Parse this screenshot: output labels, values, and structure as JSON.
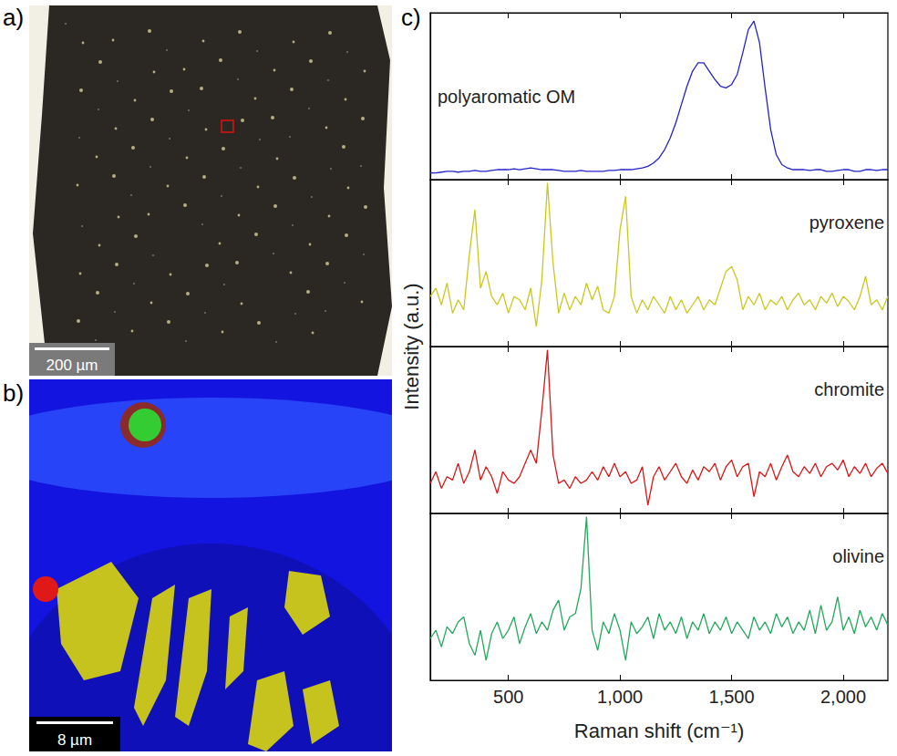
{
  "figure": {
    "panels": [
      {
        "letter": "a)",
        "scale_bar": "200 µm"
      },
      {
        "letter": "b)",
        "scale_bar": "8 µm"
      },
      {
        "letter": "c)"
      }
    ],
    "y_label": "Intensity (a.u.)"
  },
  "chart_data": [
    {
      "type": "line",
      "label": "polyaromatic OM",
      "color": "#2323cc",
      "grid": false,
      "tick_labels": false,
      "xlim": [
        150,
        2200
      ],
      "xticks": [
        500,
        1000,
        1500,
        2000
      ],
      "ylim": [
        0,
        1
      ],
      "x": [
        150,
        175,
        200,
        225,
        250,
        275,
        300,
        325,
        350,
        375,
        400,
        425,
        450,
        475,
        500,
        525,
        550,
        575,
        600,
        625,
        650,
        675,
        700,
        725,
        750,
        775,
        800,
        825,
        850,
        875,
        900,
        925,
        950,
        975,
        1000,
        1025,
        1050,
        1075,
        1100,
        1125,
        1150,
        1175,
        1200,
        1225,
        1250,
        1275,
        1300,
        1325,
        1350,
        1375,
        1400,
        1425,
        1450,
        1475,
        1500,
        1525,
        1550,
        1575,
        1600,
        1625,
        1650,
        1675,
        1700,
        1725,
        1750,
        1775,
        1800,
        1825,
        1850,
        1875,
        1900,
        1925,
        1950,
        1975,
        2000,
        2025,
        2050,
        2075,
        2100,
        2125,
        2150,
        2175,
        2200
      ],
      "values": [
        0.04,
        0.04,
        0.045,
        0.05,
        0.05,
        0.045,
        0.05,
        0.05,
        0.055,
        0.05,
        0.05,
        0.055,
        0.06,
        0.06,
        0.06,
        0.065,
        0.06,
        0.065,
        0.07,
        0.065,
        0.06,
        0.06,
        0.06,
        0.055,
        0.05,
        0.05,
        0.05,
        0.055,
        0.05,
        0.05,
        0.05,
        0.05,
        0.055,
        0.055,
        0.06,
        0.06,
        0.06,
        0.065,
        0.07,
        0.08,
        0.1,
        0.13,
        0.18,
        0.25,
        0.34,
        0.45,
        0.56,
        0.65,
        0.7,
        0.7,
        0.65,
        0.6,
        0.56,
        0.55,
        0.57,
        0.63,
        0.76,
        0.9,
        0.95,
        0.82,
        0.55,
        0.3,
        0.15,
        0.09,
        0.07,
        0.06,
        0.06,
        0.06,
        0.055,
        0.06,
        0.06,
        0.05,
        0.05,
        0.055,
        0.06,
        0.06,
        0.05,
        0.05,
        0.06,
        0.06,
        0.055,
        0.06,
        0.06
      ]
    },
    {
      "type": "line",
      "label": "pyroxene",
      "color": "#c9c81e",
      "grid": false,
      "tick_labels": false,
      "xlim": [
        150,
        2200
      ],
      "xticks": [
        500,
        1000,
        1500,
        2000
      ],
      "ylim": [
        0,
        1
      ],
      "x": [
        150,
        175,
        200,
        225,
        250,
        275,
        300,
        325,
        350,
        375,
        400,
        425,
        450,
        475,
        500,
        525,
        550,
        575,
        600,
        625,
        650,
        675,
        700,
        725,
        750,
        775,
        800,
        825,
        850,
        875,
        900,
        925,
        950,
        975,
        1000,
        1025,
        1050,
        1075,
        1100,
        1125,
        1150,
        1175,
        1200,
        1225,
        1250,
        1275,
        1300,
        1325,
        1350,
        1375,
        1400,
        1425,
        1450,
        1475,
        1500,
        1525,
        1550,
        1575,
        1600,
        1625,
        1650,
        1675,
        1700,
        1725,
        1750,
        1775,
        1800,
        1825,
        1850,
        1875,
        1900,
        1925,
        1950,
        1975,
        2000,
        2025,
        2050,
        2075,
        2100,
        2125,
        2150,
        2175,
        2200
      ],
      "values": [
        0.3,
        0.35,
        0.25,
        0.38,
        0.2,
        0.28,
        0.22,
        0.55,
        0.82,
        0.35,
        0.45,
        0.3,
        0.25,
        0.32,
        0.2,
        0.3,
        0.28,
        0.22,
        0.35,
        0.12,
        0.4,
        0.98,
        0.5,
        0.2,
        0.32,
        0.22,
        0.3,
        0.25,
        0.38,
        0.28,
        0.36,
        0.22,
        0.2,
        0.3,
        0.7,
        0.9,
        0.3,
        0.2,
        0.28,
        0.22,
        0.3,
        0.25,
        0.2,
        0.3,
        0.22,
        0.28,
        0.2,
        0.25,
        0.3,
        0.22,
        0.28,
        0.25,
        0.35,
        0.45,
        0.48,
        0.4,
        0.22,
        0.3,
        0.25,
        0.32,
        0.22,
        0.28,
        0.25,
        0.3,
        0.22,
        0.28,
        0.32,
        0.25,
        0.28,
        0.22,
        0.3,
        0.26,
        0.32,
        0.24,
        0.3,
        0.27,
        0.22,
        0.3,
        0.42,
        0.25,
        0.28,
        0.22,
        0.3
      ]
    },
    {
      "type": "line",
      "label": "chromite",
      "color": "#dd1414",
      "grid": false,
      "tick_labels": false,
      "xlim": [
        150,
        2200
      ],
      "xticks": [
        500,
        1000,
        1500,
        2000
      ],
      "ylim": [
        0,
        1
      ],
      "x": [
        150,
        175,
        200,
        225,
        250,
        275,
        300,
        325,
        350,
        375,
        400,
        425,
        450,
        475,
        500,
        525,
        550,
        575,
        600,
        625,
        650,
        675,
        700,
        725,
        750,
        775,
        800,
        825,
        850,
        875,
        900,
        925,
        950,
        975,
        1000,
        1025,
        1050,
        1075,
        1100,
        1125,
        1150,
        1175,
        1200,
        1225,
        1250,
        1275,
        1300,
        1325,
        1350,
        1375,
        1400,
        1425,
        1450,
        1475,
        1500,
        1525,
        1550,
        1575,
        1600,
        1625,
        1650,
        1675,
        1700,
        1725,
        1750,
        1775,
        1800,
        1825,
        1850,
        1875,
        1900,
        1925,
        1950,
        1975,
        2000,
        2025,
        2050,
        2075,
        2100,
        2125,
        2150,
        2175,
        2200
      ],
      "values": [
        0.18,
        0.25,
        0.15,
        0.22,
        0.2,
        0.3,
        0.18,
        0.25,
        0.38,
        0.2,
        0.28,
        0.22,
        0.12,
        0.25,
        0.2,
        0.18,
        0.22,
        0.3,
        0.38,
        0.3,
        0.62,
        0.98,
        0.35,
        0.18,
        0.2,
        0.15,
        0.22,
        0.18,
        0.2,
        0.25,
        0.2,
        0.28,
        0.22,
        0.3,
        0.22,
        0.25,
        0.18,
        0.2,
        0.28,
        0.05,
        0.22,
        0.28,
        0.2,
        0.25,
        0.3,
        0.22,
        0.18,
        0.26,
        0.2,
        0.28,
        0.25,
        0.3,
        0.2,
        0.28,
        0.32,
        0.22,
        0.28,
        0.3,
        0.1,
        0.25,
        0.22,
        0.3,
        0.2,
        0.28,
        0.35,
        0.25,
        0.22,
        0.28,
        0.24,
        0.3,
        0.22,
        0.28,
        0.3,
        0.26,
        0.32,
        0.22,
        0.28,
        0.24,
        0.3,
        0.22,
        0.27,
        0.3,
        0.24
      ]
    },
    {
      "type": "line",
      "label": "olivine",
      "color": "#22a85a",
      "grid": false,
      "tick_labels": "x",
      "x_label": "Raman shift (cm⁻¹)",
      "xlim": [
        150,
        2200
      ],
      "xticks": [
        500,
        1000,
        1500,
        2000
      ],
      "ylim": [
        0,
        1
      ],
      "x": [
        150,
        175,
        200,
        225,
        250,
        275,
        300,
        325,
        350,
        375,
        400,
        425,
        450,
        475,
        500,
        525,
        550,
        575,
        600,
        625,
        650,
        675,
        700,
        725,
        750,
        775,
        800,
        825,
        850,
        875,
        900,
        925,
        950,
        975,
        1000,
        1025,
        1050,
        1075,
        1100,
        1125,
        1150,
        1175,
        1200,
        1225,
        1250,
        1275,
        1300,
        1325,
        1350,
        1375,
        1400,
        1425,
        1450,
        1475,
        1500,
        1525,
        1550,
        1575,
        1600,
        1625,
        1650,
        1675,
        1700,
        1725,
        1750,
        1775,
        1800,
        1825,
        1850,
        1875,
        1900,
        1925,
        1950,
        1975,
        2000,
        2025,
        2050,
        2075,
        2100,
        2125,
        2150,
        2175,
        2200
      ],
      "values": [
        0.25,
        0.3,
        0.2,
        0.32,
        0.28,
        0.35,
        0.38,
        0.22,
        0.15,
        0.3,
        0.12,
        0.28,
        0.35,
        0.25,
        0.3,
        0.38,
        0.22,
        0.32,
        0.4,
        0.28,
        0.35,
        0.3,
        0.42,
        0.48,
        0.3,
        0.38,
        0.4,
        0.55,
        0.98,
        0.3,
        0.18,
        0.35,
        0.28,
        0.4,
        0.3,
        0.12,
        0.35,
        0.28,
        0.32,
        0.38,
        0.25,
        0.4,
        0.3,
        0.35,
        0.28,
        0.38,
        0.25,
        0.35,
        0.3,
        0.4,
        0.28,
        0.35,
        0.3,
        0.38,
        0.28,
        0.35,
        0.3,
        0.25,
        0.38,
        0.3,
        0.35,
        0.28,
        0.4,
        0.32,
        0.38,
        0.28,
        0.35,
        0.3,
        0.42,
        0.28,
        0.45,
        0.3,
        0.35,
        0.5,
        0.3,
        0.38,
        0.28,
        0.42,
        0.32,
        0.38,
        0.3,
        0.4,
        0.33
      ]
    }
  ]
}
